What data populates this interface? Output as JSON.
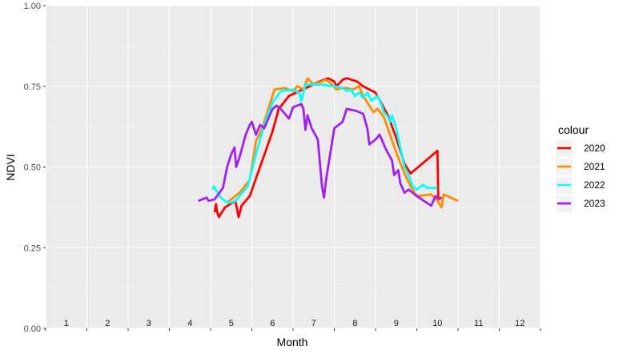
{
  "chart_data": {
    "type": "line",
    "xlabel": "Month",
    "ylabel": "NDVI",
    "ylim": [
      0,
      1
    ],
    "xlim": [
      0.5,
      12.5
    ],
    "yticks": [
      0,
      0.25,
      0.5,
      0.75,
      1
    ],
    "ytick_labels": [
      "0.00",
      "0.25",
      "0.50",
      "0.75",
      "1.00"
    ],
    "month_labels": [
      "1",
      "2",
      "3",
      "4",
      "5",
      "6",
      "7",
      "8",
      "9",
      "10",
      "11",
      "12"
    ],
    "grid": true,
    "legend": {
      "title": "colour",
      "position": "right"
    },
    "series": [
      {
        "name": "2020",
        "color": "#ff0000",
        "points": [
          [
            4.6,
            0.36
          ],
          [
            4.63,
            0.385
          ],
          [
            4.66,
            0.36
          ],
          [
            4.7,
            0.345
          ],
          [
            4.85,
            0.375
          ],
          [
            5.1,
            0.395
          ],
          [
            5.18,
            0.345
          ],
          [
            5.25,
            0.38
          ],
          [
            5.45,
            0.41
          ],
          [
            6.0,
            0.61
          ],
          [
            6.15,
            0.68
          ],
          [
            6.4,
            0.72
          ],
          [
            6.65,
            0.735
          ],
          [
            6.9,
            0.75
          ],
          [
            7.15,
            0.765
          ],
          [
            7.35,
            0.775
          ],
          [
            7.5,
            0.765
          ],
          [
            7.55,
            0.75
          ],
          [
            7.7,
            0.77
          ],
          [
            7.8,
            0.775
          ],
          [
            8.05,
            0.765
          ],
          [
            8.2,
            0.75
          ],
          [
            8.5,
            0.73
          ],
          [
            8.8,
            0.66
          ],
          [
            9.0,
            0.59
          ],
          [
            9.2,
            0.51
          ],
          [
            9.35,
            0.48
          ],
          [
            10.0,
            0.55
          ],
          [
            10.02,
            0.4
          ],
          [
            10.1,
            0.405
          ]
        ]
      },
      {
        "name": "2021",
        "color": "#ff8c00",
        "points": [
          [
            4.9,
            0.39
          ],
          [
            5.2,
            0.42
          ],
          [
            5.45,
            0.46
          ],
          [
            5.6,
            0.58
          ],
          [
            5.75,
            0.62
          ],
          [
            5.95,
            0.7
          ],
          [
            6.05,
            0.74
          ],
          [
            6.3,
            0.745
          ],
          [
            6.5,
            0.735
          ],
          [
            6.6,
            0.75
          ],
          [
            6.75,
            0.74
          ],
          [
            6.85,
            0.775
          ],
          [
            7.0,
            0.755
          ],
          [
            7.3,
            0.77
          ],
          [
            7.45,
            0.755
          ],
          [
            7.55,
            0.74
          ],
          [
            7.7,
            0.745
          ],
          [
            7.8,
            0.745
          ],
          [
            7.95,
            0.74
          ],
          [
            8.1,
            0.75
          ],
          [
            8.2,
            0.72
          ],
          [
            8.3,
            0.7
          ],
          [
            8.45,
            0.67
          ],
          [
            8.55,
            0.68
          ],
          [
            8.7,
            0.655
          ],
          [
            8.85,
            0.6
          ],
          [
            9.0,
            0.545
          ],
          [
            9.2,
            0.48
          ],
          [
            9.35,
            0.44
          ],
          [
            9.5,
            0.41
          ],
          [
            9.85,
            0.415
          ],
          [
            10.0,
            0.395
          ],
          [
            10.1,
            0.375
          ],
          [
            10.15,
            0.415
          ],
          [
            10.5,
            0.395
          ]
        ]
      },
      {
        "name": "2022",
        "color": "#00ffff",
        "points": [
          [
            4.55,
            0.43
          ],
          [
            4.58,
            0.44
          ],
          [
            4.62,
            0.43
          ],
          [
            4.75,
            0.405
          ],
          [
            4.9,
            0.39
          ],
          [
            5.0,
            0.39
          ],
          [
            5.1,
            0.395
          ],
          [
            5.4,
            0.44
          ],
          [
            5.6,
            0.54
          ],
          [
            5.8,
            0.63
          ],
          [
            6.0,
            0.7
          ],
          [
            6.2,
            0.735
          ],
          [
            6.5,
            0.74
          ],
          [
            6.65,
            0.73
          ],
          [
            6.7,
            0.705
          ],
          [
            6.8,
            0.755
          ],
          [
            7.0,
            0.755
          ],
          [
            7.2,
            0.755
          ],
          [
            7.5,
            0.75
          ],
          [
            7.7,
            0.745
          ],
          [
            7.8,
            0.735
          ],
          [
            7.9,
            0.74
          ],
          [
            8.0,
            0.72
          ],
          [
            8.1,
            0.73
          ],
          [
            8.2,
            0.715
          ],
          [
            8.3,
            0.73
          ],
          [
            8.4,
            0.705
          ],
          [
            8.55,
            0.72
          ],
          [
            8.65,
            0.69
          ],
          [
            8.7,
            0.67
          ],
          [
            8.8,
            0.655
          ],
          [
            8.85,
            0.64
          ],
          [
            8.9,
            0.66
          ],
          [
            9.0,
            0.62
          ],
          [
            9.1,
            0.56
          ],
          [
            9.2,
            0.5
          ],
          [
            9.3,
            0.475
          ],
          [
            9.4,
            0.44
          ],
          [
            9.5,
            0.43
          ],
          [
            9.65,
            0.445
          ],
          [
            9.75,
            0.435
          ],
          [
            10.0,
            0.435
          ]
        ]
      },
      {
        "name": "2023",
        "color": "#a020f0",
        "points": [
          [
            4.2,
            0.395
          ],
          [
            4.4,
            0.405
          ],
          [
            4.45,
            0.395
          ],
          [
            4.6,
            0.4
          ],
          [
            4.8,
            0.435
          ],
          [
            4.9,
            0.5
          ],
          [
            5.0,
            0.54
          ],
          [
            5.08,
            0.56
          ],
          [
            5.12,
            0.5
          ],
          [
            5.2,
            0.53
          ],
          [
            5.35,
            0.6
          ],
          [
            5.45,
            0.63
          ],
          [
            5.5,
            0.64
          ],
          [
            5.6,
            0.6
          ],
          [
            5.7,
            0.63
          ],
          [
            5.8,
            0.62
          ],
          [
            6.0,
            0.68
          ],
          [
            6.1,
            0.69
          ],
          [
            6.2,
            0.68
          ],
          [
            6.4,
            0.65
          ],
          [
            6.5,
            0.685
          ],
          [
            6.7,
            0.695
          ],
          [
            6.75,
            0.68
          ],
          [
            6.8,
            0.615
          ],
          [
            6.85,
            0.66
          ],
          [
            6.95,
            0.62
          ],
          [
            7.1,
            0.585
          ],
          [
            7.2,
            0.44
          ],
          [
            7.25,
            0.405
          ],
          [
            7.3,
            0.46
          ],
          [
            7.5,
            0.62
          ],
          [
            7.7,
            0.64
          ],
          [
            7.8,
            0.68
          ],
          [
            8.0,
            0.675
          ],
          [
            8.2,
            0.665
          ],
          [
            8.3,
            0.62
          ],
          [
            8.35,
            0.57
          ],
          [
            8.5,
            0.585
          ],
          [
            8.6,
            0.6
          ],
          [
            8.75,
            0.555
          ],
          [
            8.9,
            0.52
          ],
          [
            8.95,
            0.475
          ],
          [
            9.05,
            0.49
          ],
          [
            9.1,
            0.45
          ],
          [
            9.2,
            0.42
          ],
          [
            9.3,
            0.43
          ],
          [
            9.5,
            0.41
          ],
          [
            9.85,
            0.38
          ],
          [
            9.95,
            0.41
          ],
          [
            10.05,
            0.4
          ]
        ]
      }
    ]
  }
}
